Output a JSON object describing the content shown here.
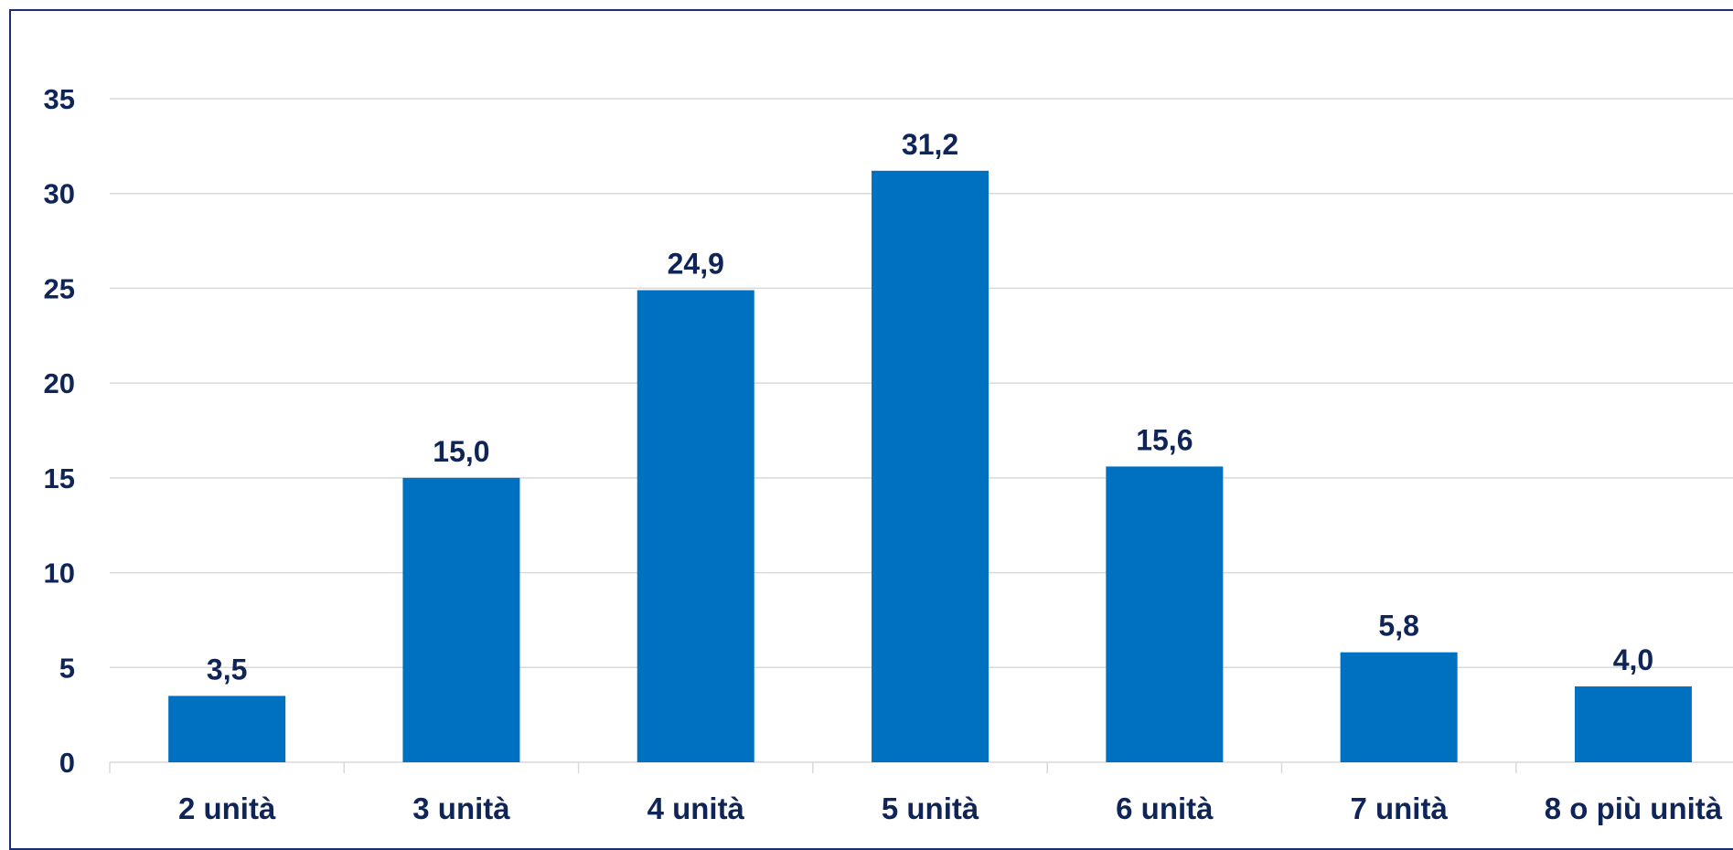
{
  "chart_data": {
    "type": "bar",
    "categories": [
      "2 unità",
      "3 unità",
      "4 unità",
      "5 unità",
      "6 unità",
      "7 unità",
      "8 o più unità"
    ],
    "values": [
      3.5,
      15.0,
      24.9,
      31.2,
      15.6,
      5.8,
      4.0
    ],
    "value_labels": [
      "3,5",
      "15,0",
      "24,9",
      "31,2",
      "15,6",
      "5,8",
      "4,0"
    ],
    "ylim": [
      0,
      35
    ],
    "yticks": [
      0,
      5,
      10,
      15,
      20,
      25,
      30,
      35
    ],
    "grid": true,
    "legend": "none",
    "colors": {
      "bar": "#0070c0",
      "text": "#0f2557",
      "grid": "#d9d9d9",
      "border": "#1a2f6e"
    }
  }
}
